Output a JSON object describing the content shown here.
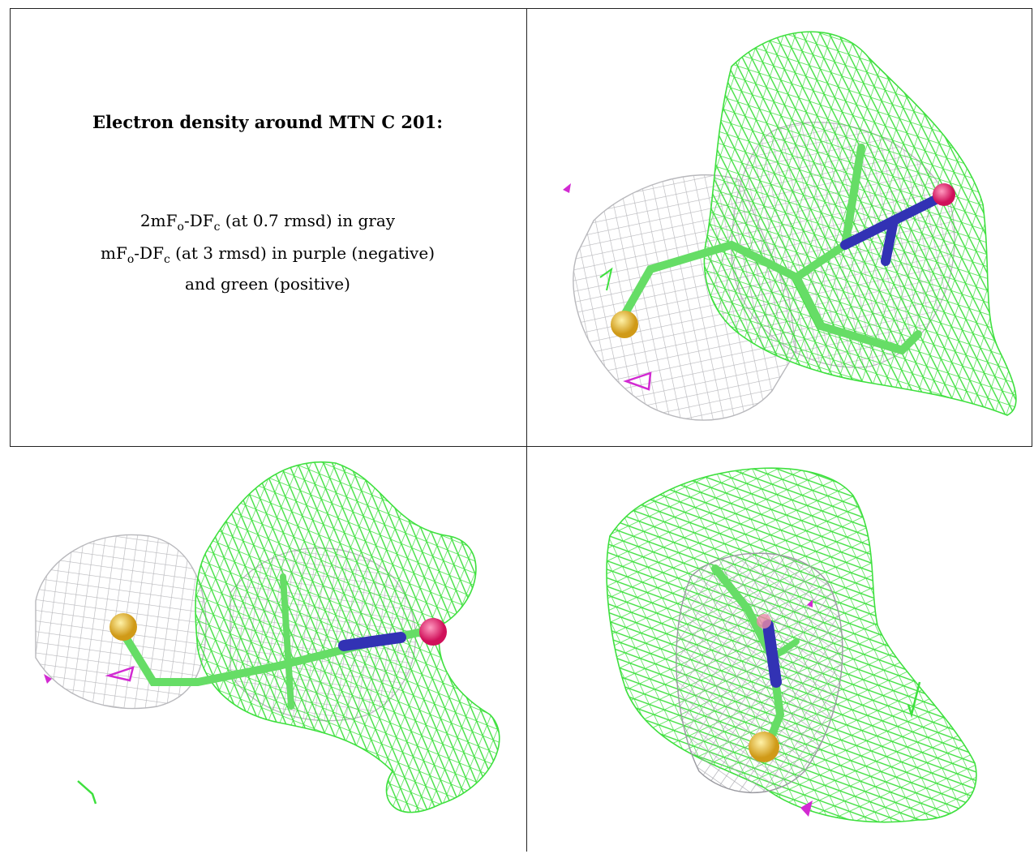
{
  "caption": {
    "title": "Electron density around MTN C 201:",
    "line1": {
      "pre": "2mF",
      "sub1": "o",
      "mid": "-DF",
      "sub2": "c",
      "post": " (at 0.7 rmsd) in gray"
    },
    "line2": {
      "pre": "mF",
      "sub1": "o",
      "mid": "-DF",
      "sub2": "c",
      "post": " (at 3 rmsd) in purple (negative)"
    },
    "line3": "and green (positive)"
  },
  "colors": {
    "gray_mesh": "#b8b8bc",
    "green_mesh": "#3ee03e",
    "purple_mesh": "#d22ad2",
    "stick": "#66dd66",
    "sulfur": "#e8b830",
    "nitrogen": "#3232b4",
    "oxygen": "#e8286e"
  },
  "panels": [
    {
      "name": "panel-view-1",
      "icon": "density-mesh-view"
    },
    {
      "name": "panel-view-2",
      "icon": "density-mesh-view"
    },
    {
      "name": "panel-view-3",
      "icon": "density-mesh-view"
    }
  ]
}
